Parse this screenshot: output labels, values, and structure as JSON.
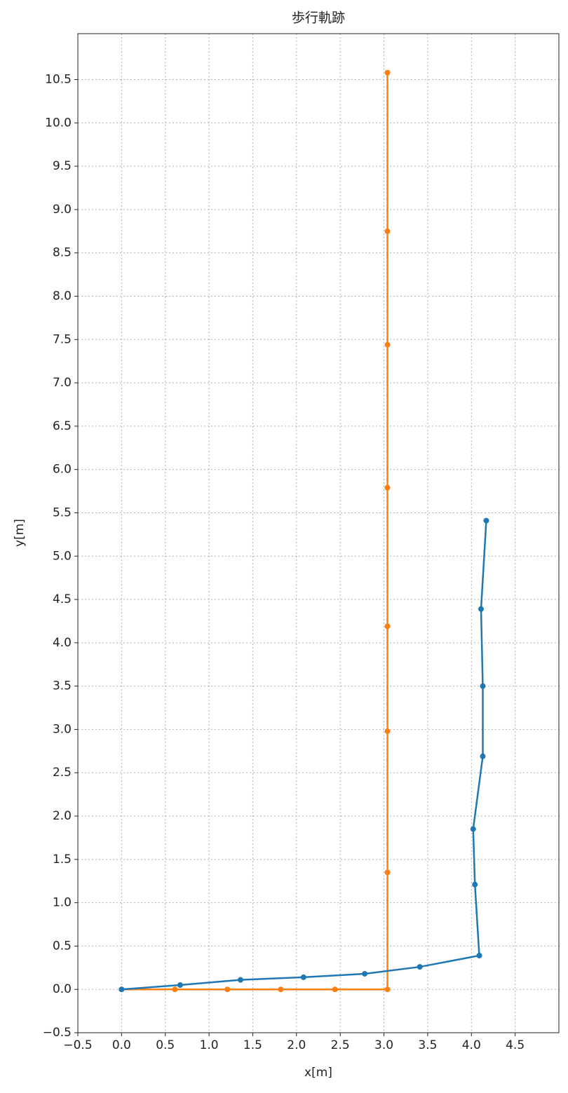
{
  "chart_data": {
    "type": "line",
    "title": "歩行軌跡",
    "x_label": "x[m]",
    "y_label": "y[m]",
    "grid": true,
    "xlim": [
      -0.5,
      5.0
    ],
    "ylim": [
      -0.5,
      11.03
    ],
    "xticks": [
      {
        "value": -0.5,
        "label": "−0.5"
      },
      {
        "value": 0,
        "label": "0.0"
      },
      {
        "value": 0.5,
        "label": "0.5"
      },
      {
        "value": 1,
        "label": "1.0"
      },
      {
        "value": 1.5,
        "label": "1.5"
      },
      {
        "value": 2,
        "label": "2.0"
      },
      {
        "value": 2.5,
        "label": "2.5"
      },
      {
        "value": 3,
        "label": "3.0"
      },
      {
        "value": 3.5,
        "label": "3.5"
      },
      {
        "value": 4,
        "label": "4.0"
      },
      {
        "value": 4.5,
        "label": "4.5"
      }
    ],
    "yticks": [
      {
        "value": -0.5,
        "label": "−0.5"
      },
      {
        "value": 0,
        "label": "0.0"
      },
      {
        "value": 0.5,
        "label": "0.5"
      },
      {
        "value": 1,
        "label": "1.0"
      },
      {
        "value": 1.5,
        "label": "1.5"
      },
      {
        "value": 2,
        "label": "2.0"
      },
      {
        "value": 2.5,
        "label": "2.5"
      },
      {
        "value": 3,
        "label": "3.0"
      },
      {
        "value": 3.5,
        "label": "3.5"
      },
      {
        "value": 4,
        "label": "4.0"
      },
      {
        "value": 4.5,
        "label": "4.5"
      },
      {
        "value": 5,
        "label": "5.0"
      },
      {
        "value": 5.5,
        "label": "5.5"
      },
      {
        "value": 6,
        "label": "6.0"
      },
      {
        "value": 6.5,
        "label": "6.5"
      },
      {
        "value": 7,
        "label": "7.0"
      },
      {
        "value": 7.5,
        "label": "7.5"
      },
      {
        "value": 8,
        "label": "8.0"
      },
      {
        "value": 8.5,
        "label": "8.5"
      },
      {
        "value": 9,
        "label": "9.0"
      },
      {
        "value": 9.5,
        "label": "9.5"
      },
      {
        "value": 10,
        "label": "10.0"
      },
      {
        "value": 10.5,
        "label": "10.5"
      }
    ],
    "series": [
      {
        "color": "#1f77b4",
        "x": [
          0,
          0.67,
          1.36,
          2.08,
          2.78,
          3.41,
          4.09,
          4.04,
          4.02,
          4.13,
          4.13,
          4.11,
          4.17
        ],
        "values": [
          0,
          0.05,
          0.11,
          0.14,
          0.18,
          0.26,
          0.39,
          1.21,
          1.85,
          2.69,
          3.5,
          4.39,
          5.41
        ]
      },
      {
        "color": "#ff7f0e",
        "x": [
          0,
          0.61,
          1.21,
          1.82,
          2.44,
          3.04,
          3.04,
          3.04,
          3.04,
          3.04,
          3.04,
          3.04,
          3.04
        ],
        "values": [
          0,
          0,
          0,
          0,
          0,
          0,
          1.35,
          2.98,
          4.19,
          5.79,
          7.44,
          8.75,
          10.58
        ]
      }
    ]
  }
}
